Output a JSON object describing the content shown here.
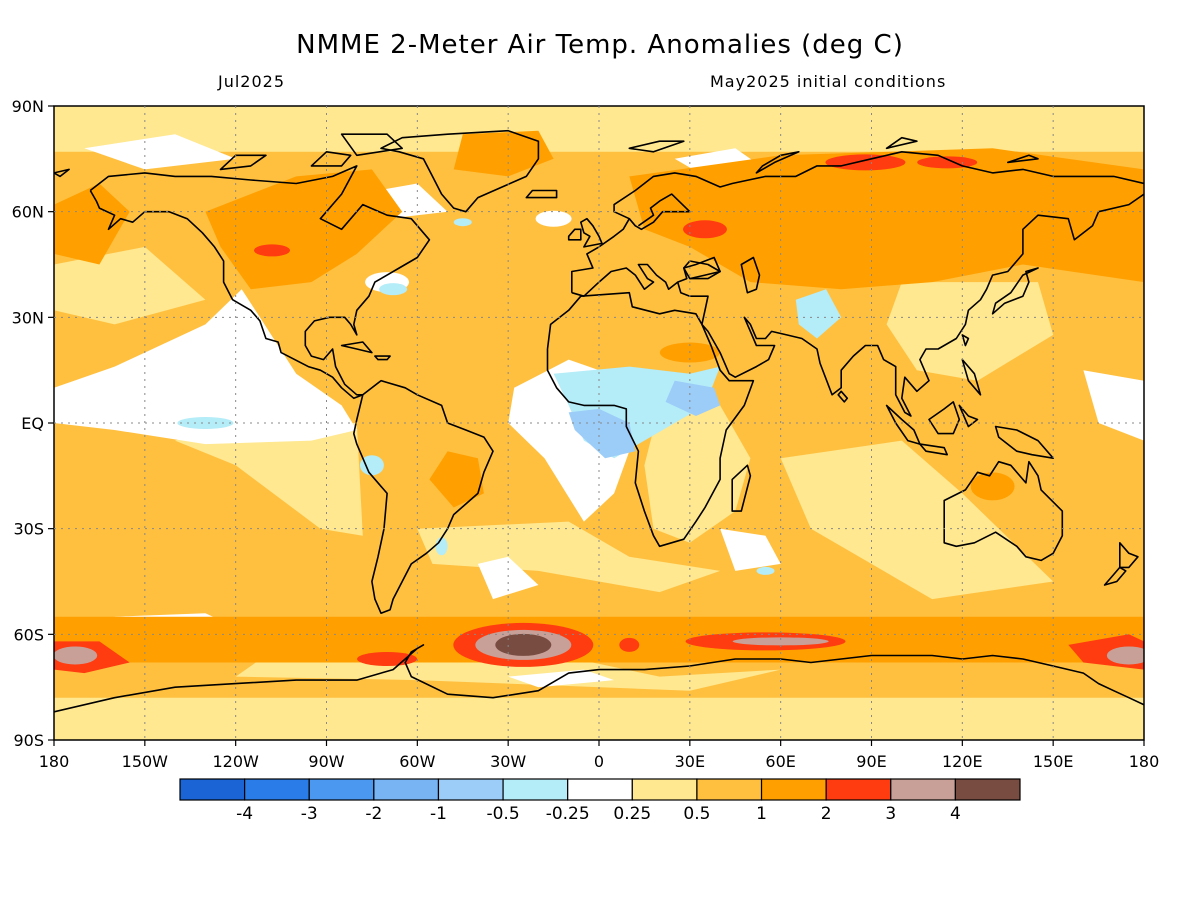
{
  "title": "NMME 2-Meter Air Temp. Anomalies (deg C)",
  "left_subtitle": "Jul2025",
  "right_subtitle": "May2025 initial conditions",
  "lat_labels": [
    "90N",
    "60N",
    "30N",
    "EQ",
    "30S",
    "60S",
    "90S"
  ],
  "lon_labels": [
    "180",
    "150W",
    "120W",
    "90W",
    "60W",
    "30W",
    "0",
    "30E",
    "60E",
    "90E",
    "120E",
    "150E",
    "180"
  ],
  "colorbar": {
    "colors": [
      "#1a64d6",
      "#2a7ce8",
      "#4a98f0",
      "#78b4f4",
      "#9cccf8",
      "#b4ecf8",
      "#ffffff",
      "#ffe890",
      "#ffc040",
      "#ffa000",
      "#ff3c10",
      "#c8a098",
      "#784c40"
    ],
    "labels": [
      "-4",
      "-3",
      "-2",
      "-1",
      "-0.5",
      "-0.25",
      "0.25",
      "0.5",
      "1",
      "2",
      "3",
      "4"
    ]
  },
  "map_colors": {
    "base": "#ffc040",
    "light": "#ffe890",
    "white": "#ffffff",
    "orange": "#ffa000",
    "red": "#ff3c10",
    "pink": "#c8a098",
    "brown": "#784c40",
    "cyan": "#b4ecf8",
    "blue": "#9cccf8",
    "coast": "#000000"
  }
}
